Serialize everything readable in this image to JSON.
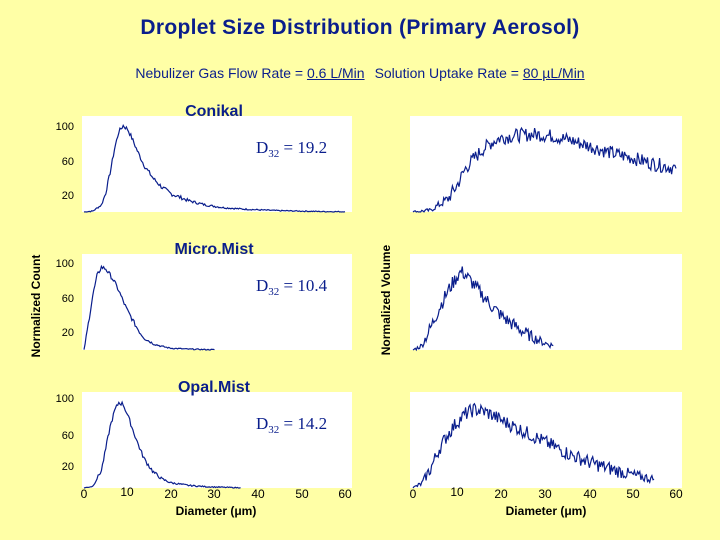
{
  "title": "Droplet  Size Distribution (Primary Aerosol)",
  "subtitle": {
    "p1": "Nebulizer Gas Flow Rate = ",
    "flow": "0.6 L/Min",
    "p2": "Solution Uptake Rate = ",
    "uptake": "80 µL/Min"
  },
  "colors": {
    "background": "#FFFFA6",
    "title": "#0A1E8C",
    "trace": "#0A1E8C",
    "plot_bg": "#FFFFFF"
  },
  "left_ylabel": "Normalized Count",
  "right_ylabel": "Normalized Volume",
  "chart_data": [
    {
      "type": "line",
      "title": "Conikal",
      "annotation": "D32 = 19.2",
      "d32_value": "19.2",
      "ylabel": "Normalized Count",
      "y_ticks": [
        "100",
        "60",
        "20"
      ],
      "xlim": [
        0,
        60
      ],
      "ylim": [
        0,
        110
      ],
      "series": [
        {
          "panel": "count",
          "x": [
            0,
            2,
            4,
            5,
            6,
            7,
            8,
            9,
            10,
            11,
            12,
            13,
            14,
            16,
            18,
            20,
            24,
            28,
            32,
            36,
            40,
            45,
            50,
            55,
            60
          ],
          "y": [
            0,
            1,
            8,
            22,
            45,
            72,
            92,
            99,
            95,
            85,
            73,
            62,
            52,
            38,
            28,
            21,
            13,
            8,
            5,
            3.5,
            2.5,
            1.5,
            1,
            0.5,
            0.3
          ]
        },
        {
          "panel": "volume",
          "x": [
            0,
            4,
            8,
            10,
            12,
            14,
            16,
            18,
            20,
            24,
            28,
            32,
            36,
            40,
            45,
            50,
            55,
            60
          ],
          "y": [
            0,
            2,
            15,
            30,
            50,
            62,
            72,
            80,
            85,
            88,
            89,
            87,
            82,
            76,
            68,
            62,
            55,
            50
          ]
        }
      ]
    },
    {
      "type": "line",
      "title": "Micro.Mist",
      "annotation": "D32 = 10.4",
      "d32_value": "10.4",
      "ylabel": "Normalized Count",
      "y_ticks": [
        "100",
        "60",
        "20"
      ],
      "xlim": [
        0,
        60
      ],
      "ylim": [
        0,
        110
      ],
      "series": [
        {
          "panel": "count",
          "x": [
            0,
            1,
            2,
            3,
            4,
            5,
            6,
            7,
            8,
            9,
            10,
            11,
            12,
            13,
            14,
            16,
            18,
            20,
            24,
            28,
            30
          ],
          "y": [
            0,
            30,
            62,
            85,
            95,
            93,
            86,
            78,
            68,
            56,
            45,
            36,
            27,
            19,
            13,
            7,
            4,
            2,
            1,
            0.5,
            0.3
          ]
        },
        {
          "panel": "volume",
          "x": [
            0,
            2,
            4,
            6,
            8,
            10,
            11,
            12,
            14,
            16,
            18,
            20,
            22,
            24,
            26,
            28,
            30,
            32
          ],
          "y": [
            0,
            5,
            25,
            48,
            68,
            84,
            90,
            86,
            74,
            62,
            50,
            40,
            32,
            25,
            18,
            13,
            8,
            5
          ]
        }
      ]
    },
    {
      "type": "line",
      "title": "Opal.Mist",
      "annotation": "D32 = 14.2",
      "d32_value": "14.2",
      "ylabel": "Normalized Count",
      "xlabel": "Diameter (μm)",
      "y_ticks": [
        "100",
        "60",
        "20"
      ],
      "x_ticks": [
        "0",
        "10",
        "20",
        "30",
        "40",
        "50",
        "60"
      ],
      "xlim": [
        0,
        60
      ],
      "ylim": [
        0,
        110
      ],
      "series": [
        {
          "panel": "count",
          "x": [
            0,
            2,
            4,
            5,
            6,
            7,
            8,
            9,
            10,
            11,
            12,
            13,
            14,
            16,
            18,
            20,
            24,
            28,
            32,
            36
          ],
          "y": [
            0,
            2,
            20,
            45,
            70,
            88,
            98,
            96,
            84,
            70,
            56,
            43,
            32,
            18,
            10,
            6,
            3,
            1.5,
            0.8,
            0.3
          ]
        },
        {
          "panel": "volume",
          "x": [
            0,
            2,
            4,
            6,
            8,
            10,
            12,
            14,
            16,
            18,
            20,
            24,
            28,
            32,
            36,
            40,
            45,
            50,
            55
          ],
          "y": [
            0,
            5,
            22,
            45,
            62,
            75,
            85,
            90,
            88,
            84,
            78,
            68,
            58,
            48,
            38,
            30,
            22,
            15,
            10
          ]
        }
      ]
    }
  ]
}
